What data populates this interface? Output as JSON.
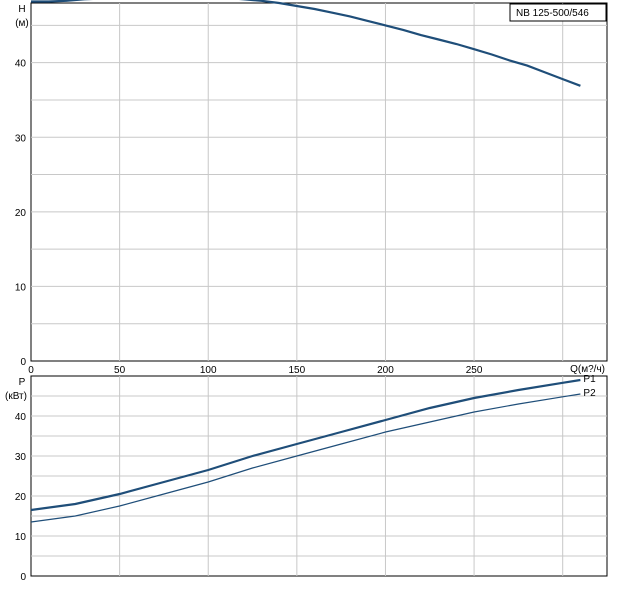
{
  "chart_data": [
    {
      "type": "line",
      "title": "NB 125-500/546",
      "ylabel_top": "H",
      "ylabel_unit": "(м)",
      "xlabel": "Q(м?/ч)",
      "xlim": [
        0,
        325
      ],
      "ylim": [
        0,
        48
      ],
      "x_ticks": [
        "0",
        "50",
        "100",
        "150",
        "200",
        "250"
      ],
      "y_ticks": [
        "0",
        "10",
        "20",
        "30",
        "40"
      ],
      "grid": true,
      "series": [
        {
          "color": "#1f4e79",
          "x": [
            0,
            10,
            20,
            30,
            40,
            50,
            60,
            70,
            80,
            90,
            100,
            110,
            120,
            130,
            140,
            150,
            160,
            170,
            180,
            190,
            200,
            210,
            220,
            230,
            240,
            250,
            260,
            270,
            280,
            290,
            300,
            310
          ],
          "y": [
            48.2,
            48.2,
            48.3,
            48.5,
            48.6,
            48.7,
            48.8,
            48.9,
            49.0,
            49.0,
            48.9,
            48.7,
            48.5,
            48.3,
            48.0,
            47.6,
            47.2,
            46.7,
            46.2,
            45.6,
            45.0,
            44.4,
            43.7,
            43.1,
            42.5,
            41.8,
            41.1,
            40.3,
            39.6,
            38.7,
            37.8,
            36.9
          ]
        }
      ]
    },
    {
      "type": "line",
      "ylabel_top": "P",
      "ylabel_unit": "(кВт)",
      "xlim": [
        0,
        325
      ],
      "ylim": [
        0,
        50
      ],
      "y_ticks": [
        "0",
        "10",
        "20",
        "30",
        "40"
      ],
      "grid": true,
      "series": [
        {
          "name": "P1",
          "color": "#1f4e79",
          "x": [
            0,
            25,
            50,
            75,
            100,
            125,
            150,
            175,
            200,
            225,
            250,
            275,
            300,
            310
          ],
          "y": [
            16.5,
            18.0,
            20.5,
            23.5,
            26.5,
            30.0,
            33.0,
            36.0,
            39.0,
            42.0,
            44.5,
            46.5,
            48.3,
            49.0
          ]
        },
        {
          "name": "P2",
          "color": "#1f4e79",
          "x": [
            0,
            25,
            50,
            75,
            100,
            125,
            150,
            175,
            200,
            225,
            250,
            275,
            300,
            310
          ],
          "y": [
            13.5,
            15.0,
            17.5,
            20.5,
            23.5,
            27.0,
            30.0,
            33.0,
            36.0,
            38.5,
            41.0,
            43.0,
            44.8,
            45.5
          ]
        }
      ]
    }
  ]
}
